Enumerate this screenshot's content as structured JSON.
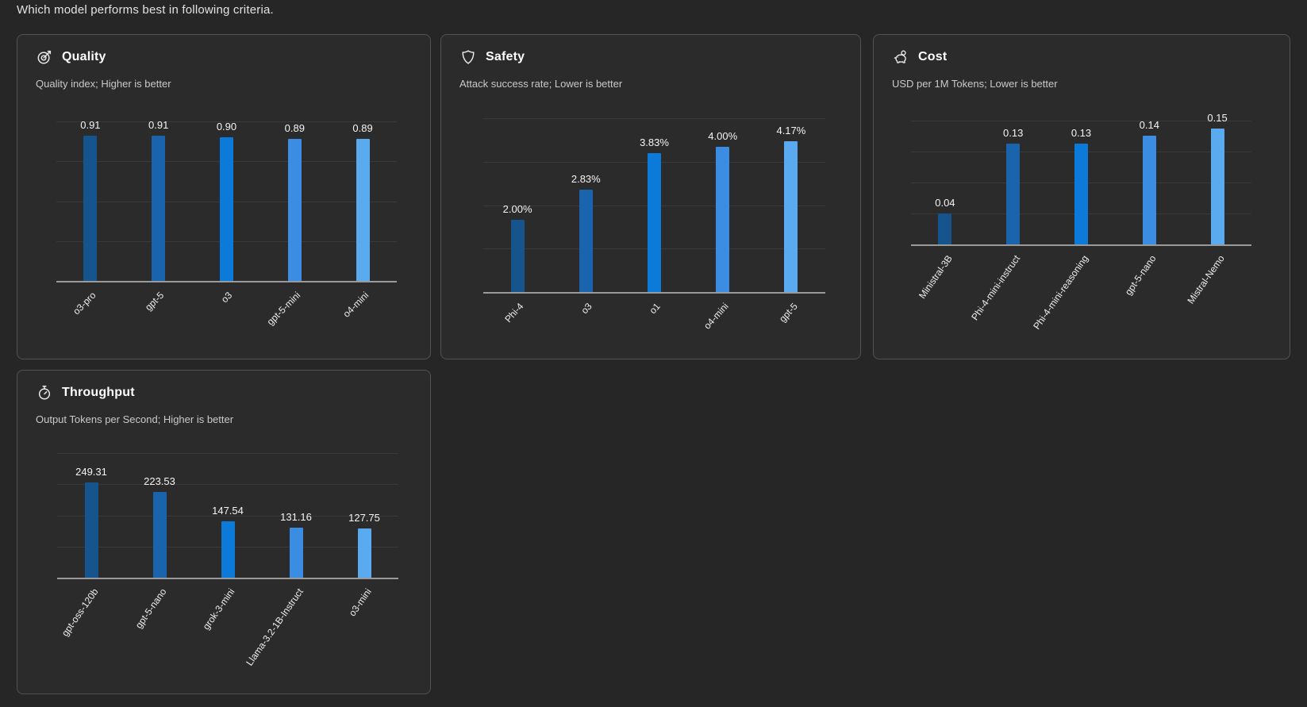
{
  "page": {
    "heading": "Which model performs best in following criteria."
  },
  "colors": {
    "page_bg": "#262626",
    "card_bg": "#2b2b2b",
    "card_border": "#525252",
    "axis_line": "#9a9a9a",
    "gridline": "#393939",
    "bar_palette": [
      "#15548c",
      "#1a64ad",
      "#0b7ad8",
      "#3a8de2",
      "#5aaaf0"
    ]
  },
  "icons": {
    "quality": "target-arrow-icon",
    "safety": "shield-icon",
    "cost": "piggy-bank-icon",
    "throughput": "stopwatch-icon"
  },
  "chart_data": [
    {
      "id": "quality",
      "type": "bar",
      "title": "Quality",
      "subtitle": "Quality index; Higher is better",
      "icon": "target-arrow-icon",
      "categories": [
        "o3-pro",
        "gpt-5",
        "o3",
        "gpt-5-mini",
        "o4-mini"
      ],
      "values": [
        0.91,
        0.91,
        0.9,
        0.89,
        0.89
      ],
      "value_labels": [
        "0.91",
        "0.91",
        "0.90",
        "0.89",
        "0.89"
      ],
      "ylim": [
        0,
        1.0
      ],
      "grid": true,
      "legend_position": "none"
    },
    {
      "id": "safety",
      "type": "bar",
      "title": "Safety",
      "subtitle": "Attack success rate; Lower is better",
      "icon": "shield-icon",
      "categories": [
        "Phi-4",
        "o3",
        "o1",
        "o4-mini",
        "gpt-5"
      ],
      "values": [
        2.0,
        2.83,
        3.83,
        4.0,
        4.17
      ],
      "value_labels": [
        "2.00%",
        "2.83%",
        "3.83%",
        "4.00%",
        "4.17%"
      ],
      "ylim": [
        0,
        4.8
      ],
      "grid": true,
      "legend_position": "none"
    },
    {
      "id": "cost",
      "type": "bar",
      "title": "Cost",
      "subtitle": "USD per 1M Tokens; Lower is better",
      "icon": "piggy-bank-icon",
      "categories": [
        "Ministral-3B",
        "Phi-4-mini-instruct",
        "Phi-4-mini-reasoning",
        "gpt-5-nano",
        "Mistral-Nemo"
      ],
      "values": [
        0.04,
        0.13,
        0.13,
        0.14,
        0.15
      ],
      "value_labels": [
        "0.04",
        "0.13",
        "0.13",
        "0.14",
        "0.15"
      ],
      "ylim": [
        0,
        0.16
      ],
      "grid": true,
      "legend_position": "none"
    },
    {
      "id": "throughput",
      "type": "bar",
      "title": "Throughput",
      "subtitle": "Output Tokens per Second; Higher is better",
      "icon": "stopwatch-icon",
      "categories": [
        "gpt-oss-120b",
        "gpt-5-nano",
        "grok-3-mini",
        "Llama-3.2-1B-Instruct",
        "o3-mini"
      ],
      "values": [
        249.31,
        223.53,
        147.54,
        131.16,
        127.75
      ],
      "value_labels": [
        "249.31",
        "223.53",
        "147.54",
        "131.16",
        "127.75"
      ],
      "ylim": [
        0,
        326
      ],
      "grid": true,
      "legend_position": "none"
    }
  ]
}
